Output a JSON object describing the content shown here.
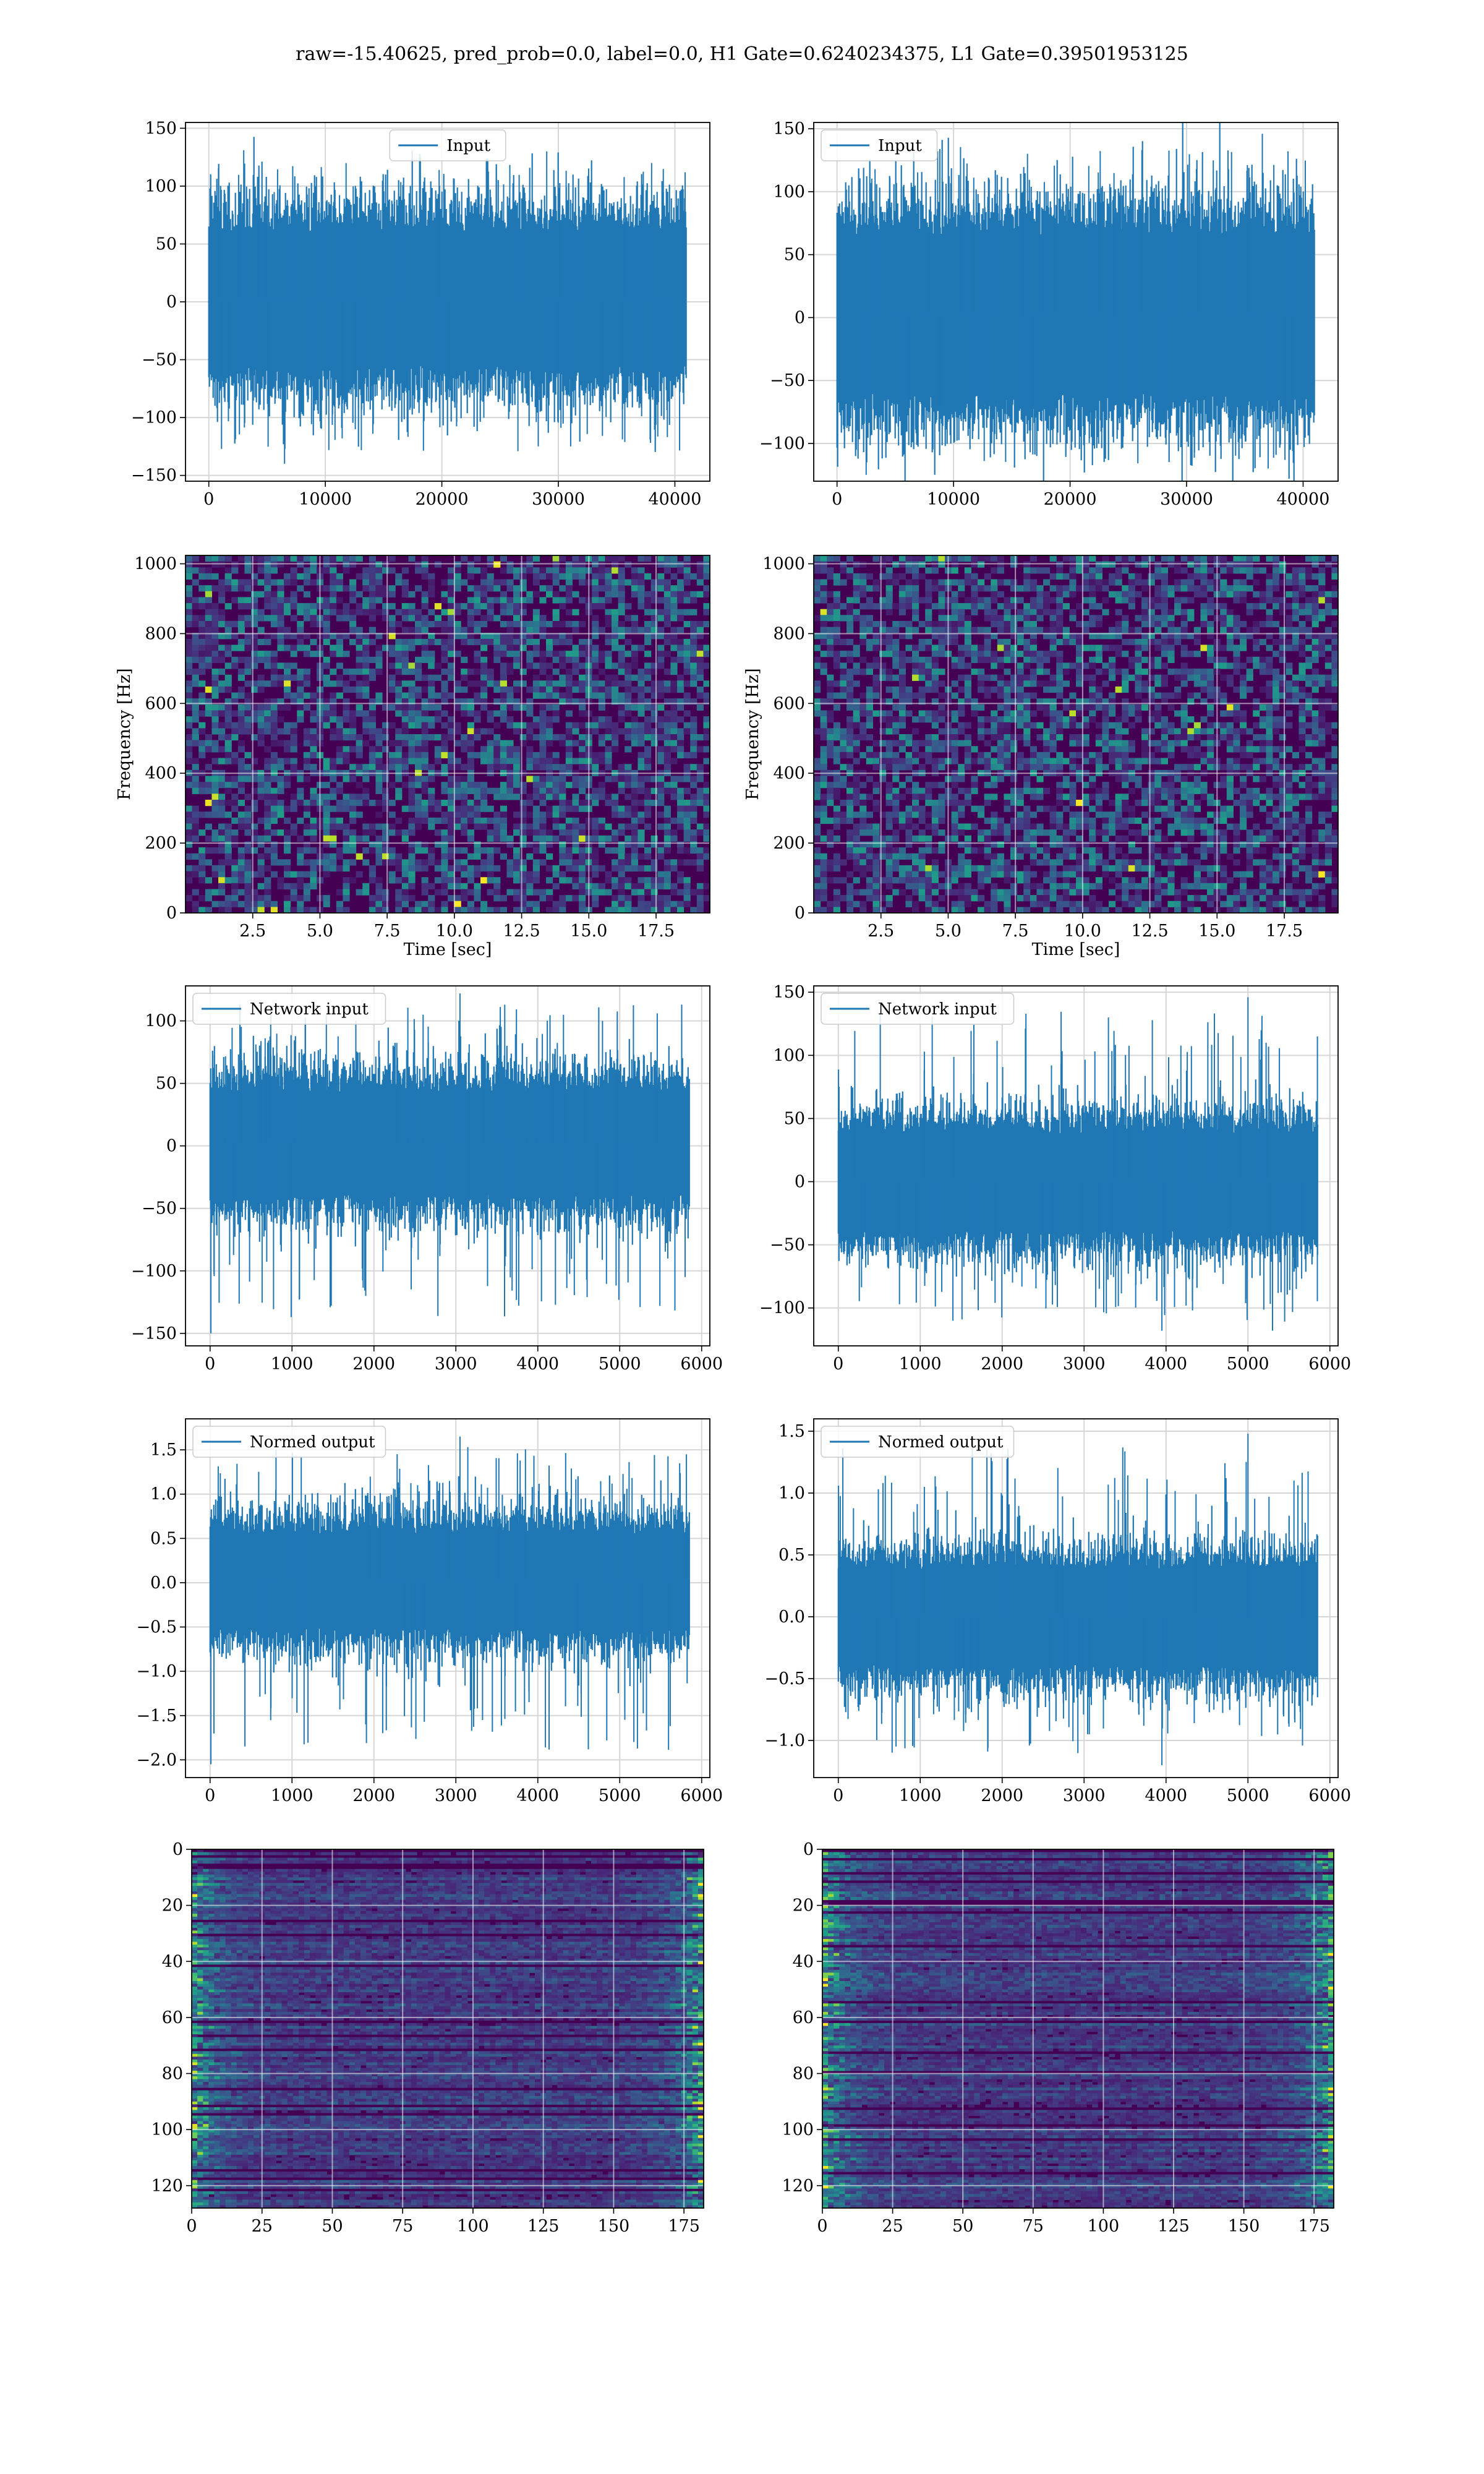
{
  "figure": {
    "suptitle": "raw=-15.40625, pred_prob=0.0, label=0.0, H1 Gate=0.6240234375, L1 Gate=0.39501953125",
    "colors": {
      "line": "#1f77b4",
      "grid": "#d6d6d6",
      "viridis_low": "#440154",
      "viridis_mid": "#21918c",
      "viridis_high": "#fde725"
    }
  },
  "chart_data": [
    {
      "id": "input-h1",
      "type": "line",
      "legend": "Input",
      "legend_loc": "upper-center",
      "xlim": [
        -2000,
        43000
      ],
      "ylim": [
        -155,
        155
      ],
      "xticks": [
        0,
        10000,
        20000,
        30000,
        40000
      ],
      "xticklabels": [
        "0",
        "10000",
        "20000",
        "30000",
        "40000"
      ],
      "yticks": [
        -150,
        -100,
        -50,
        0,
        50,
        100,
        150
      ],
      "yticklabels": [
        "−150",
        "−100",
        "−50",
        "0",
        "50",
        "100",
        "150"
      ],
      "series": [
        {
          "n_points": 40960,
          "x_range": [
            0,
            40960
          ],
          "core_band": [
            -65,
            70
          ],
          "approx_extremes": [
            -140,
            131
          ],
          "spikes": [
            [
              6500,
              -140
            ],
            [
              3000,
              131
            ],
            [
              29000,
              130
            ],
            [
              38000,
              120
            ]
          ]
        }
      ],
      "grid": true
    },
    {
      "id": "input-l1",
      "type": "line",
      "legend": "Input",
      "legend_loc": "upper-left",
      "xlim": [
        -2000,
        43000
      ],
      "ylim": [
        -130,
        155
      ],
      "xticks": [
        0,
        10000,
        20000,
        30000,
        40000
      ],
      "xticklabels": [
        "0",
        "10000",
        "20000",
        "30000",
        "40000"
      ],
      "yticks": [
        -100,
        -50,
        0,
        50,
        100,
        150
      ],
      "yticklabels": [
        "−100",
        "−50",
        "0",
        "50",
        "100",
        "150"
      ],
      "series": [
        {
          "n_points": 40960,
          "x_range": [
            0,
            40960
          ],
          "core_band": [
            -70,
            75
          ],
          "approx_extremes": [
            -125,
            146
          ],
          "spikes": [
            [
              36500,
              146
            ],
            [
              2500,
              -125
            ],
            [
              37000,
              -120
            ]
          ]
        }
      ],
      "grid": true
    },
    {
      "id": "spec-h1",
      "type": "heatmap",
      "xlabel": "Time [sec]",
      "ylabel": "Frequency [Hz]",
      "xlim": [
        0,
        19.5
      ],
      "ylim": [
        0,
        1024
      ],
      "xticks": [
        2.5,
        5.0,
        7.5,
        10.0,
        12.5,
        15.0,
        17.5
      ],
      "xticklabels": [
        "2.5",
        "5.0",
        "7.5",
        "10.0",
        "12.5",
        "15.0",
        "17.5"
      ],
      "yticks": [
        0,
        200,
        400,
        600,
        800,
        1000
      ],
      "yticklabels": [
        "0",
        "200",
        "400",
        "600",
        "800",
        "1000"
      ],
      "colormap": "viridis",
      "grid": true
    },
    {
      "id": "spec-l1",
      "type": "heatmap",
      "xlabel": "Time [sec]",
      "ylabel": "Frequency [Hz]",
      "xlim": [
        0,
        19.5
      ],
      "ylim": [
        0,
        1024
      ],
      "xticks": [
        2.5,
        5.0,
        7.5,
        10.0,
        12.5,
        15.0,
        17.5
      ],
      "xticklabels": [
        "2.5",
        "5.0",
        "7.5",
        "10.0",
        "12.5",
        "15.0",
        "17.5"
      ],
      "yticks": [
        0,
        200,
        400,
        600,
        800,
        1000
      ],
      "yticklabels": [
        "0",
        "200",
        "400",
        "600",
        "800",
        "1000"
      ],
      "colormap": "viridis",
      "grid": true
    },
    {
      "id": "netin-h1",
      "type": "line",
      "legend": "Network input",
      "legend_loc": "upper-left",
      "xlim": [
        -300,
        6100
      ],
      "ylim": [
        -160,
        128
      ],
      "xticks": [
        0,
        1000,
        2000,
        3000,
        4000,
        5000,
        6000
      ],
      "xticklabels": [
        "0",
        "1000",
        "2000",
        "3000",
        "4000",
        "5000",
        "6000"
      ],
      "yticks": [
        -150,
        -100,
        -50,
        0,
        50,
        100
      ],
      "yticklabels": [
        "−150",
        "−100",
        "−50",
        "0",
        "50",
        "100"
      ],
      "series": [
        {
          "n_points": 5850,
          "x_range": [
            0,
            5850
          ],
          "core_band": [
            -45,
            50
          ],
          "approx_extremes": [
            -150,
            122
          ],
          "spikes": [
            [
              10,
              -150
            ],
            [
              3050,
              122
            ],
            [
              2600,
              105
            ],
            [
              1900,
              -120
            ]
          ]
        }
      ],
      "grid": true
    },
    {
      "id": "netin-l1",
      "type": "line",
      "legend": "Network input",
      "legend_loc": "upper-left",
      "xlim": [
        -300,
        6100
      ],
      "ylim": [
        -130,
        155
      ],
      "xticks": [
        0,
        1000,
        2000,
        3000,
        4000,
        5000,
        6000
      ],
      "xticklabels": [
        "0",
        "1000",
        "2000",
        "3000",
        "4000",
        "5000",
        "6000"
      ],
      "yticks": [
        -100,
        -50,
        0,
        50,
        100,
        150
      ],
      "yticklabels": [
        "−100",
        "−50",
        "0",
        "50",
        "100",
        "150"
      ],
      "series": [
        {
          "n_points": 5850,
          "x_range": [
            0,
            5850
          ],
          "core_band": [
            -45,
            45
          ],
          "approx_extremes": [
            -120,
            146
          ],
          "spikes": [
            [
              5000,
              146
            ],
            [
              3950,
              -118
            ],
            [
              5300,
              -118
            ],
            [
              1050,
              103
            ]
          ]
        }
      ],
      "grid": true
    },
    {
      "id": "norm-h1",
      "type": "line",
      "legend": "Normed output",
      "legend_loc": "upper-left",
      "xlim": [
        -300,
        6100
      ],
      "ylim": [
        -2.2,
        1.85
      ],
      "xticks": [
        0,
        1000,
        2000,
        3000,
        4000,
        5000,
        6000
      ],
      "xticklabels": [
        "0",
        "1000",
        "2000",
        "3000",
        "4000",
        "5000",
        "6000"
      ],
      "yticks": [
        -2.0,
        -1.5,
        -1.0,
        -0.5,
        0.0,
        0.5,
        1.0,
        1.5
      ],
      "yticklabels": [
        "−2.0",
        "−1.5",
        "−1.0",
        "−0.5",
        "0.0",
        "0.5",
        "1.0",
        "1.5"
      ],
      "series": [
        {
          "n_points": 5850,
          "x_range": [
            0,
            5850
          ],
          "core_band": [
            -0.6,
            0.65
          ],
          "approx_extremes": [
            -2.05,
            1.65
          ],
          "spikes": [
            [
              10,
              -2.05
            ],
            [
              3050,
              1.65
            ],
            [
              1900,
              -1.6
            ]
          ]
        }
      ],
      "grid": true
    },
    {
      "id": "norm-l1",
      "type": "line",
      "legend": "Normed output",
      "legend_loc": "upper-left",
      "xlim": [
        -300,
        6100
      ],
      "ylim": [
        -1.3,
        1.6
      ],
      "xticks": [
        0,
        1000,
        2000,
        3000,
        4000,
        5000,
        6000
      ],
      "xticklabels": [
        "0",
        "1000",
        "2000",
        "3000",
        "4000",
        "5000",
        "6000"
      ],
      "yticks": [
        -1.0,
        -0.5,
        0.0,
        0.5,
        1.0,
        1.5
      ],
      "yticklabels": [
        "−1.0",
        "−0.5",
        "0.0",
        "0.5",
        "1.0",
        "1.5"
      ],
      "series": [
        {
          "n_points": 5850,
          "x_range": [
            0,
            5850
          ],
          "core_band": [
            -0.45,
            0.45
          ],
          "approx_extremes": [
            -1.2,
            1.48
          ],
          "spikes": [
            [
              5000,
              1.48
            ],
            [
              3950,
              -1.2
            ],
            [
              1050,
              1.05
            ]
          ]
        }
      ],
      "grid": true
    },
    {
      "id": "feat-h1",
      "type": "heatmap",
      "colormap": "viridis",
      "xlim": [
        0,
        182
      ],
      "ylim": [
        128,
        0
      ],
      "xticks": [
        0,
        25,
        50,
        75,
        100,
        125,
        150,
        175
      ],
      "xticklabels": [
        "0",
        "25",
        "50",
        "75",
        "100",
        "125",
        "150",
        "175"
      ],
      "yticks": [
        0,
        20,
        40,
        60,
        80,
        100,
        120
      ],
      "yticklabels": [
        "0",
        "20",
        "40",
        "60",
        "80",
        "100",
        "120"
      ],
      "grid": true
    },
    {
      "id": "feat-l1",
      "type": "heatmap",
      "colormap": "viridis",
      "xlim": [
        0,
        182
      ],
      "ylim": [
        128,
        0
      ],
      "xticks": [
        0,
        25,
        50,
        75,
        100,
        125,
        150,
        175
      ],
      "xticklabels": [
        "0",
        "25",
        "50",
        "75",
        "100",
        "125",
        "150",
        "175"
      ],
      "yticks": [
        0,
        20,
        40,
        60,
        80,
        100,
        120
      ],
      "yticklabels": [
        "0",
        "20",
        "40",
        "60",
        "80",
        "100",
        "120"
      ],
      "grid": true
    }
  ]
}
